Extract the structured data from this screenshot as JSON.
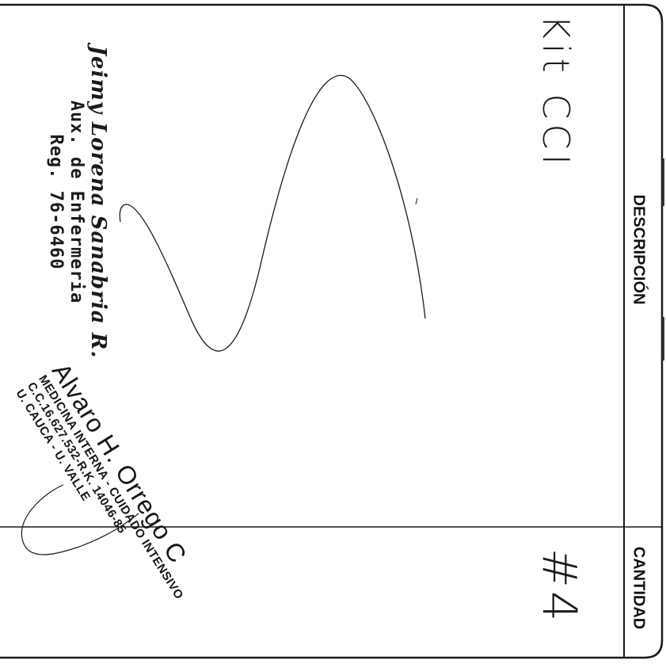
{
  "table": {
    "header_description": "DESCRIPCIÓN",
    "header_quantity": "CANTIDAD"
  },
  "row": {
    "item": "• Kit CCI",
    "quantity": "#4"
  },
  "stamp_nurse": {
    "name": "Jeimy Lorena Sanabria R.",
    "title": "Aux. de Enfermeria",
    "reg": "Reg. 76-6460"
  },
  "stamp_doctor": {
    "name": "Alvaro H. Orrego C",
    "line1": "MEDICINA INTERNA - CUIDADO INTENSIVO",
    "line2": "C.C.16.627.532-R.K. 14046-85",
    "line3": "U. CAUCA - U. VALLE"
  }
}
